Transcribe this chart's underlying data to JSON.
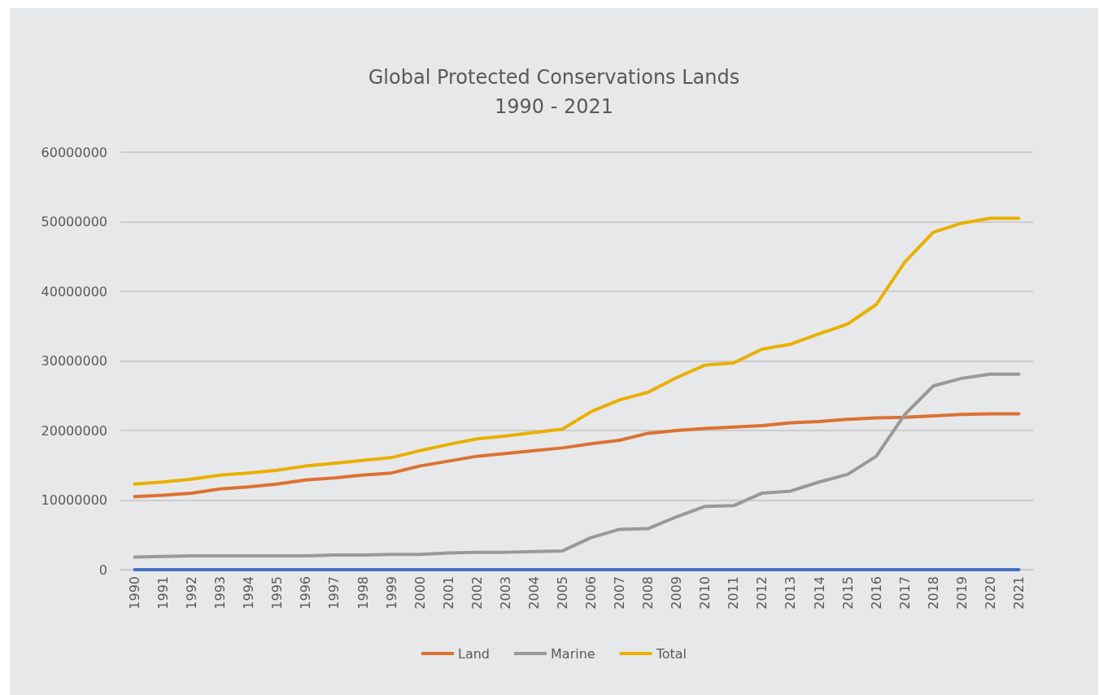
{
  "chart_data": {
    "type": "line",
    "title": "Global Protected Conservations Lands\n1990 - 2021",
    "categories": [
      "1990",
      "1991",
      "1992",
      "1993",
      "1994",
      "1995",
      "1996",
      "1997",
      "1998",
      "1999",
      "2000",
      "2001",
      "2002",
      "2003",
      "2004",
      "2005",
      "2006",
      "2007",
      "2008",
      "2009",
      "2010",
      "2011",
      "2012",
      "2013",
      "2014",
      "2015",
      "2016",
      "2017",
      "2018",
      "2019",
      "2020",
      "2021"
    ],
    "series": [
      {
        "color": "#4472c4",
        "values": [
          0,
          0,
          0,
          0,
          0,
          0,
          0,
          0,
          0,
          0,
          0,
          0,
          0,
          0,
          0,
          0,
          0,
          0,
          0,
          0,
          0,
          0,
          0,
          0,
          0,
          0,
          0,
          0,
          0,
          0,
          0,
          0
        ]
      },
      {
        "name": "Land",
        "color": "#dc7232",
        "values": [
          10500000,
          10700000,
          11000000,
          11600000,
          11900000,
          12300000,
          12900000,
          13200000,
          13600000,
          13900000,
          14900000,
          15600000,
          16300000,
          16700000,
          17100000,
          17500000,
          18100000,
          18600000,
          19600000,
          20000000,
          20300000,
          20500000,
          20700000,
          21100000,
          21300000,
          21600000,
          21800000,
          21900000,
          22100000,
          22300000,
          22400000,
          22400000
        ]
      },
      {
        "name": "Marine",
        "color": "#999999",
        "values": [
          1800000,
          1900000,
          2000000,
          2000000,
          2000000,
          2000000,
          2000000,
          2100000,
          2100000,
          2200000,
          2200000,
          2400000,
          2500000,
          2500000,
          2600000,
          2700000,
          4600000,
          5800000,
          5900000,
          7600000,
          9100000,
          9200000,
          11000000,
          11300000,
          12600000,
          13700000,
          16300000,
          22300000,
          26400000,
          27500000,
          28100000,
          28100000
        ]
      },
      {
        "name": "Total",
        "color": "#e8b000",
        "values": [
          12300000,
          12600000,
          13000000,
          13600000,
          13900000,
          14300000,
          14900000,
          15300000,
          15700000,
          16100000,
          17100000,
          18000000,
          18800000,
          19200000,
          19700000,
          20200000,
          22700000,
          24400000,
          25500000,
          27600000,
          29400000,
          29700000,
          31700000,
          32400000,
          33900000,
          35300000,
          38100000,
          44200000,
          48500000,
          49800000,
          50500000,
          50500000
        ]
      }
    ],
    "ylim": [
      0,
      60000000
    ],
    "yticks": [
      0,
      10000000,
      20000000,
      30000000,
      40000000,
      50000000,
      60000000
    ],
    "grid": "y",
    "legend": "bottom",
    "marker": "none",
    "line_style": "solid"
  }
}
